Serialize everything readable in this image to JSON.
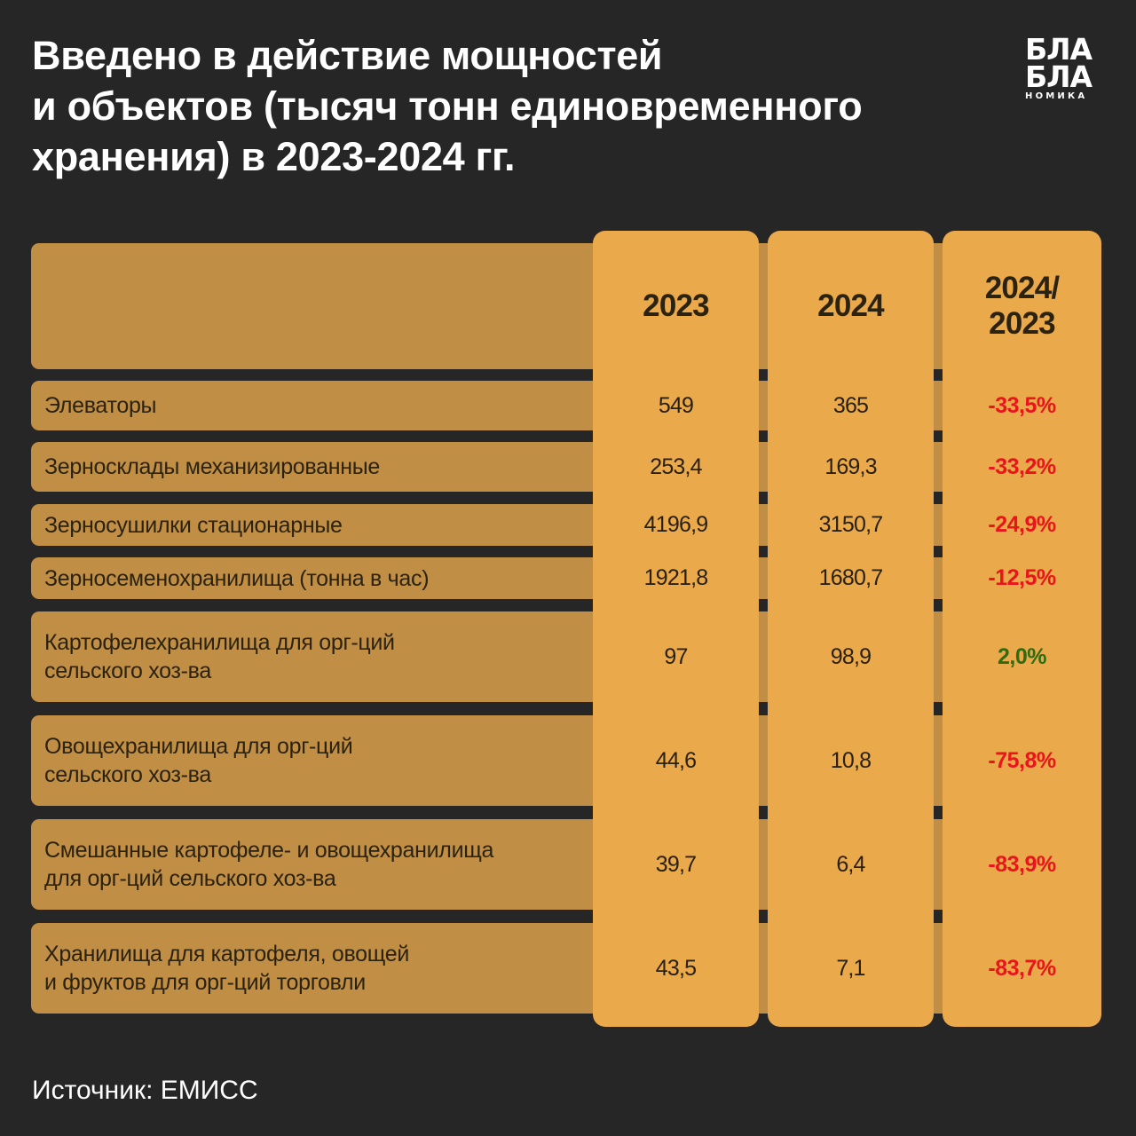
{
  "title_lines": [
    "Введено в действие мощностей",
    "и объектов (тысяч тонн единовременного",
    "хранения) в 2023-2024 гг."
  ],
  "logo": {
    "line1": "БЛА",
    "line2": "БЛА",
    "line3": "НОМИКА"
  },
  "source": "Источник: ЕМИСС",
  "colors": {
    "background": "#262626",
    "column": "#eaa94a",
    "row": "#c08e44",
    "negative": "#e8151b",
    "positive": "#2f6b10"
  },
  "chart_data": {
    "type": "table",
    "columns": [
      "",
      "2023",
      "2024",
      "2024/\n2023"
    ],
    "rows": [
      {
        "name": "Элеваторы",
        "v2023": "549",
        "v2024": "365",
        "change": "-33,5%",
        "sign": "neg"
      },
      {
        "name": "Зерносклады механизированные",
        "v2023": "253,4",
        "v2024": "169,3",
        "change": "-33,2%",
        "sign": "neg"
      },
      {
        "name": "Зерносушилки стационарные",
        "v2023": "4196,9",
        "v2024": "3150,7",
        "change": "-24,9%",
        "sign": "neg"
      },
      {
        "name": "Зерносеменохранилища (тонна в час)",
        "v2023": "1921,8",
        "v2024": "1680,7",
        "change": "-12,5%",
        "sign": "neg"
      },
      {
        "name": "Картофелехранилища для орг-ций\nсельского хоз-ва",
        "v2023": "97",
        "v2024": "98,9",
        "change": "2,0%",
        "sign": "pos"
      },
      {
        "name": "Овощехранилища для орг-ций\nсельского хоз-ва",
        "v2023": "44,6",
        "v2024": "10,8",
        "change": "-75,8%",
        "sign": "neg"
      },
      {
        "name": "Смешанные картофеле- и овощехранилища\nдля орг-ций сельского хоз-ва",
        "v2023": "39,7",
        "v2024": "6,4",
        "change": "-83,9%",
        "sign": "neg"
      },
      {
        "name": "Хранилища для картофеля, овощей\nи фруктов для орг-ций торговли",
        "v2023": "43,5",
        "v2024": "7,1",
        "change": "-83,7%",
        "sign": "neg"
      }
    ]
  }
}
